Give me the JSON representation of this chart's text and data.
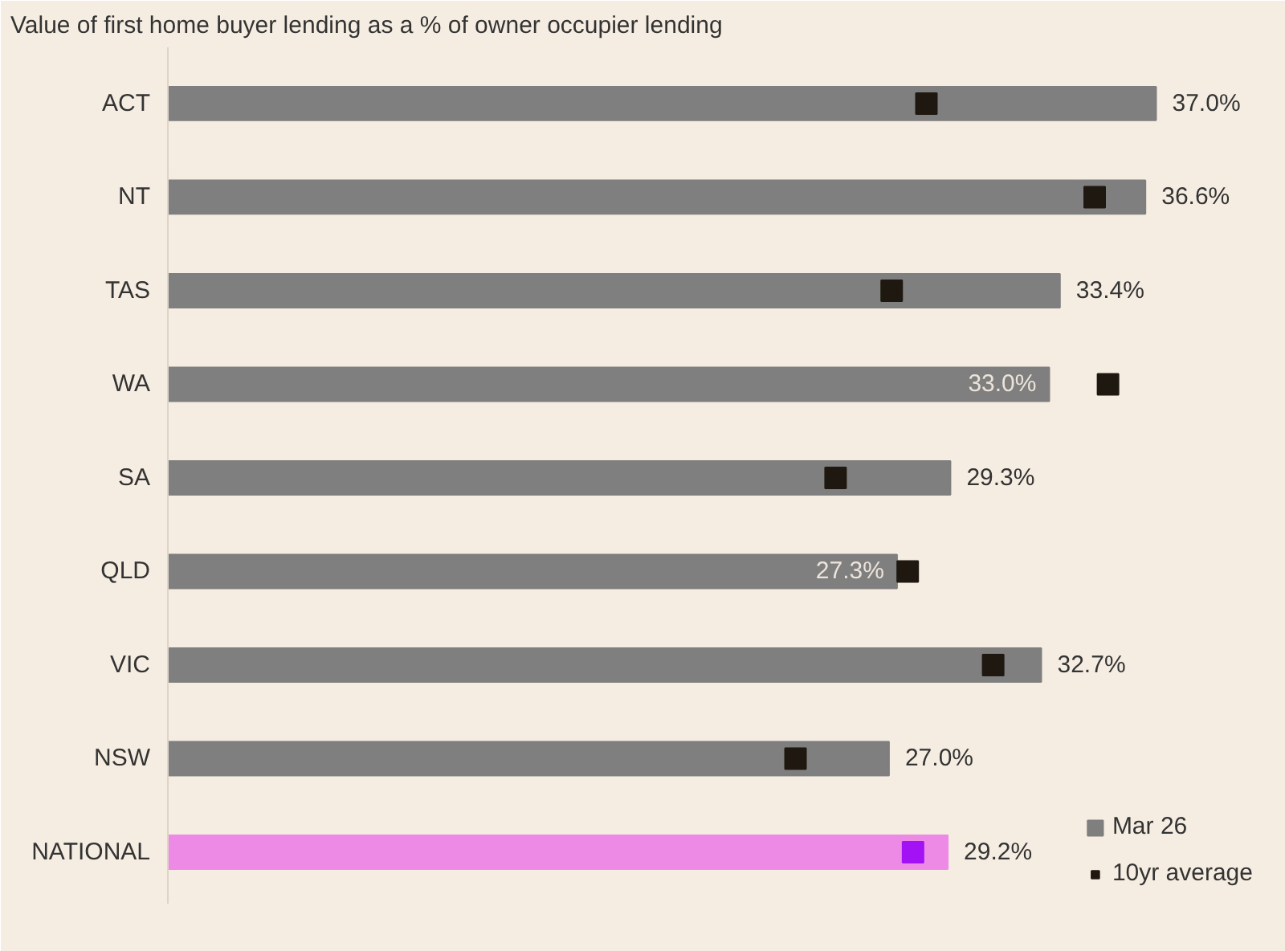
{
  "chart_data": {
    "type": "bar",
    "orientation": "horizontal",
    "title": "Value of first home buyer lending as a % of owner occupier lending",
    "categories": [
      "ACT",
      "NT",
      "TAS",
      "WA",
      "SA",
      "QLD",
      "VIC",
      "NSW",
      "NATIONAL"
    ],
    "series": [
      {
        "name": "Mar 26",
        "colors": [
          "#7f7f7f",
          "#7f7f7f",
          "#7f7f7f",
          "#7f7f7f",
          "#7f7f7f",
          "#7f7f7f",
          "#7f7f7f",
          "#7f7f7f",
          "#ec8ae6"
        ],
        "values": [
          37.0,
          36.6,
          33.4,
          33.0,
          29.3,
          27.3,
          32.7,
          27.0,
          29.2
        ],
        "value_labels": [
          "37.0%",
          "36.6%",
          "33.4%",
          "33.0%",
          "29.3%",
          "27.3%",
          "32.7%",
          "27.0%",
          "29.2%"
        ]
      },
      {
        "name": "10yr average",
        "type": "scatter",
        "colors": [
          "#1e1810",
          "#1e1810",
          "#1e1810",
          "#1e1810",
          "#1e1810",
          "#1e1810",
          "#1e1810",
          "#1e1810",
          "#a312f5"
        ],
        "values": [
          28.4,
          34.7,
          27.1,
          35.2,
          25.0,
          27.7,
          30.9,
          23.5,
          27.9
        ]
      }
    ],
    "legend": "bottom right",
    "marker": "square",
    "grid": false
  }
}
